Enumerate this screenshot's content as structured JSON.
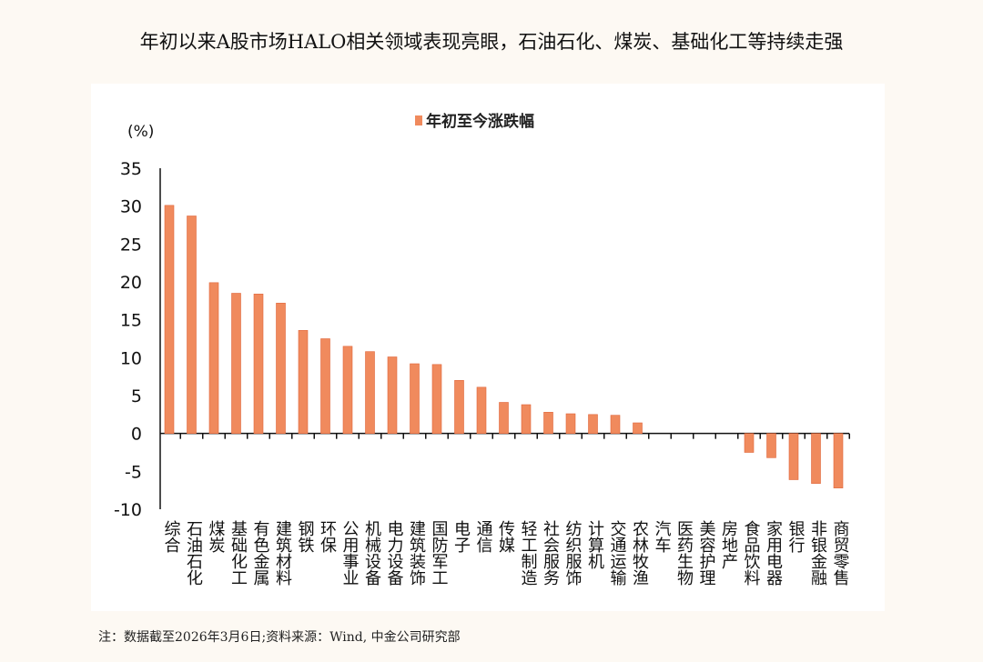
{
  "title": "年初以来A股市场HALO相关领域表现亮眼，石油石化、煤炭、基础化工等持续走强",
  "footnote": "注：数据截至2026年3月6日;资料来源：Wind, 中金公司研究部",
  "chart_data": {
    "type": "bar",
    "ylabel": "(%)",
    "ylim": [
      -10,
      35
    ],
    "yticks": [
      35,
      30,
      25,
      20,
      15,
      10,
      5,
      0,
      -5,
      -10
    ],
    "grid": false,
    "legend_position": "top",
    "bar_color": "#f08a5d",
    "series": [
      {
        "name": "年初至今涨跌幅",
        "values": [
          30.1,
          28.7,
          19.9,
          18.5,
          18.4,
          17.2,
          13.6,
          12.5,
          11.5,
          10.8,
          10.1,
          9.2,
          9.1,
          7.0,
          6.1,
          4.1,
          3.8,
          2.8,
          2.6,
          2.5,
          2.4,
          1.4,
          0,
          0,
          0,
          0,
          -2.5,
          -3.2,
          -6.1,
          -6.6,
          -7.2
        ]
      }
    ],
    "categories": [
      "综合",
      "石油石化",
      "煤炭",
      "基础化工",
      "有色金属",
      "建筑材料",
      "钢铁",
      "环保",
      "公用事业",
      "机械设备",
      "电力设备",
      "建筑装饰",
      "国防军工",
      "电子",
      "通信",
      "传媒",
      "轻工制造",
      "社会服务",
      "纺织服饰",
      "计算机",
      "交通运输",
      "农林牧渔",
      "汽车",
      "医药生物",
      "美容护理",
      "房地产",
      "食品饮料",
      "家用电器",
      "银行",
      "非银金融",
      "商贸零售"
    ]
  }
}
